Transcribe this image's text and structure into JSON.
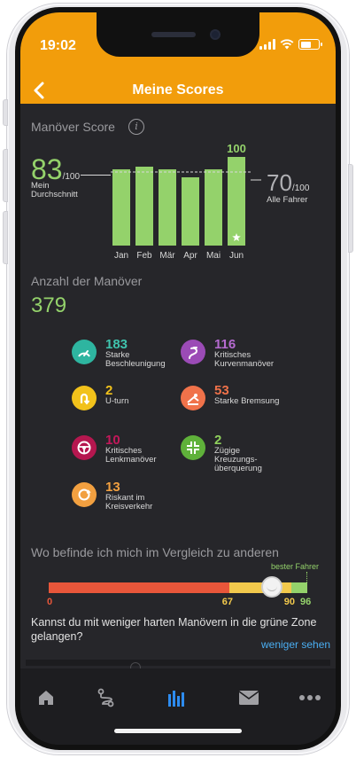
{
  "status": {
    "time": "19:02"
  },
  "header": {
    "title": "Meine Scores",
    "back_icon": "chevron-left-icon"
  },
  "score_section": {
    "title": "Manöver Score",
    "info_icon": "info-icon",
    "my_average": {
      "value": "83",
      "max": "/100",
      "label_line1": "Mein",
      "label_line2": "Durchschnitt"
    },
    "all_drivers": {
      "value": "70",
      "max": "/100",
      "label": "Alle Fahrer"
    }
  },
  "chart_data": {
    "type": "bar",
    "categories": [
      "Jan",
      "Feb",
      "Mär",
      "Apr",
      "Mai",
      "Jun"
    ],
    "values": [
      86,
      89,
      86,
      77,
      86,
      100
    ],
    "data_labels": [
      "",
      "",
      "",
      "",
      "",
      "100"
    ],
    "ylim": [
      0,
      100
    ],
    "reference_lines": [
      {
        "value": 83
      },
      {
        "value": 70
      }
    ],
    "highlight": {
      "category": "Jun",
      "icon": "star-icon"
    },
    "bar_color": "#94d26b",
    "grid": false
  },
  "maneuvers_section": {
    "title": "Anzahl der Manöver",
    "total": "379",
    "items": [
      {
        "count": "183",
        "label1": "Starke",
        "label2": "Beschleunigung",
        "label3": "",
        "color": "#2eb5a0",
        "num_color": "#3fc3ad",
        "icon": "speedometer-icon"
      },
      {
        "count": "116",
        "label1": "Kritisches",
        "label2": "Kurvenmanöver",
        "label3": "",
        "color": "#9b4bb6",
        "num_color": "#b56ad0",
        "icon": "curve-road-icon"
      },
      {
        "count": "2",
        "label1": "U-turn",
        "label2": "",
        "label3": "",
        "color": "#f2c21b",
        "num_color": "#f2c21b",
        "icon": "u-turn-icon"
      },
      {
        "count": "53",
        "label1": "Starke Bremsung",
        "label2": "",
        "label3": "",
        "color": "#f0724a",
        "num_color": "#f0724a",
        "icon": "brake-icon"
      },
      {
        "count": "10",
        "label1": "Kritisches",
        "label2": "Lenkmanöver",
        "label3": "",
        "color": "#b5174f",
        "num_color": "#c3185a",
        "icon": "steering-wheel-icon"
      },
      {
        "count": "2",
        "label1": "Zügige",
        "label2": "Kreuzungs-",
        "label3": "überquerung",
        "color": "#5fb13a",
        "num_color": "#8fd05c",
        "icon": "intersection-icon"
      },
      {
        "count": "13",
        "label1": "Riskant im",
        "label2": "Kreisverkehr",
        "label3": "",
        "color": "#f2a040",
        "num_color": "#f2a040",
        "icon": "roundabout-icon"
      }
    ]
  },
  "comparison": {
    "title": "Wo befinde ich mich im Vergleich zu anderen",
    "best_label": "bester Fahrer",
    "score": 83,
    "ticks": [
      {
        "label": "0",
        "value": 0,
        "color": "#e8563a"
      },
      {
        "label": "67",
        "value": 67,
        "color": "#f2c94c"
      },
      {
        "label": "90",
        "value": 90,
        "color": "#f2c94c"
      },
      {
        "label": "96",
        "value": 96,
        "color": "#94d26b"
      }
    ],
    "segments": [
      {
        "from": 0,
        "to": 67,
        "color": "#e8563a"
      },
      {
        "from": 67,
        "to": 90,
        "color": "#f2c94c"
      },
      {
        "from": 90,
        "to": 96,
        "color": "#94d26b"
      }
    ],
    "question": "Kannst du mit weniger harten Manövern in die grüne Zone gelangen?",
    "link": "weniger sehen"
  },
  "tabbar": {
    "tabs": [
      {
        "icon": "home-icon",
        "active": false
      },
      {
        "icon": "route-icon",
        "active": false
      },
      {
        "icon": "chart-bars-icon",
        "active": true
      },
      {
        "icon": "mail-icon",
        "active": false
      },
      {
        "icon": "more-dots-icon",
        "active": false
      }
    ],
    "active_color": "#2d8cf0",
    "inactive_color": "#a0a0a4"
  }
}
